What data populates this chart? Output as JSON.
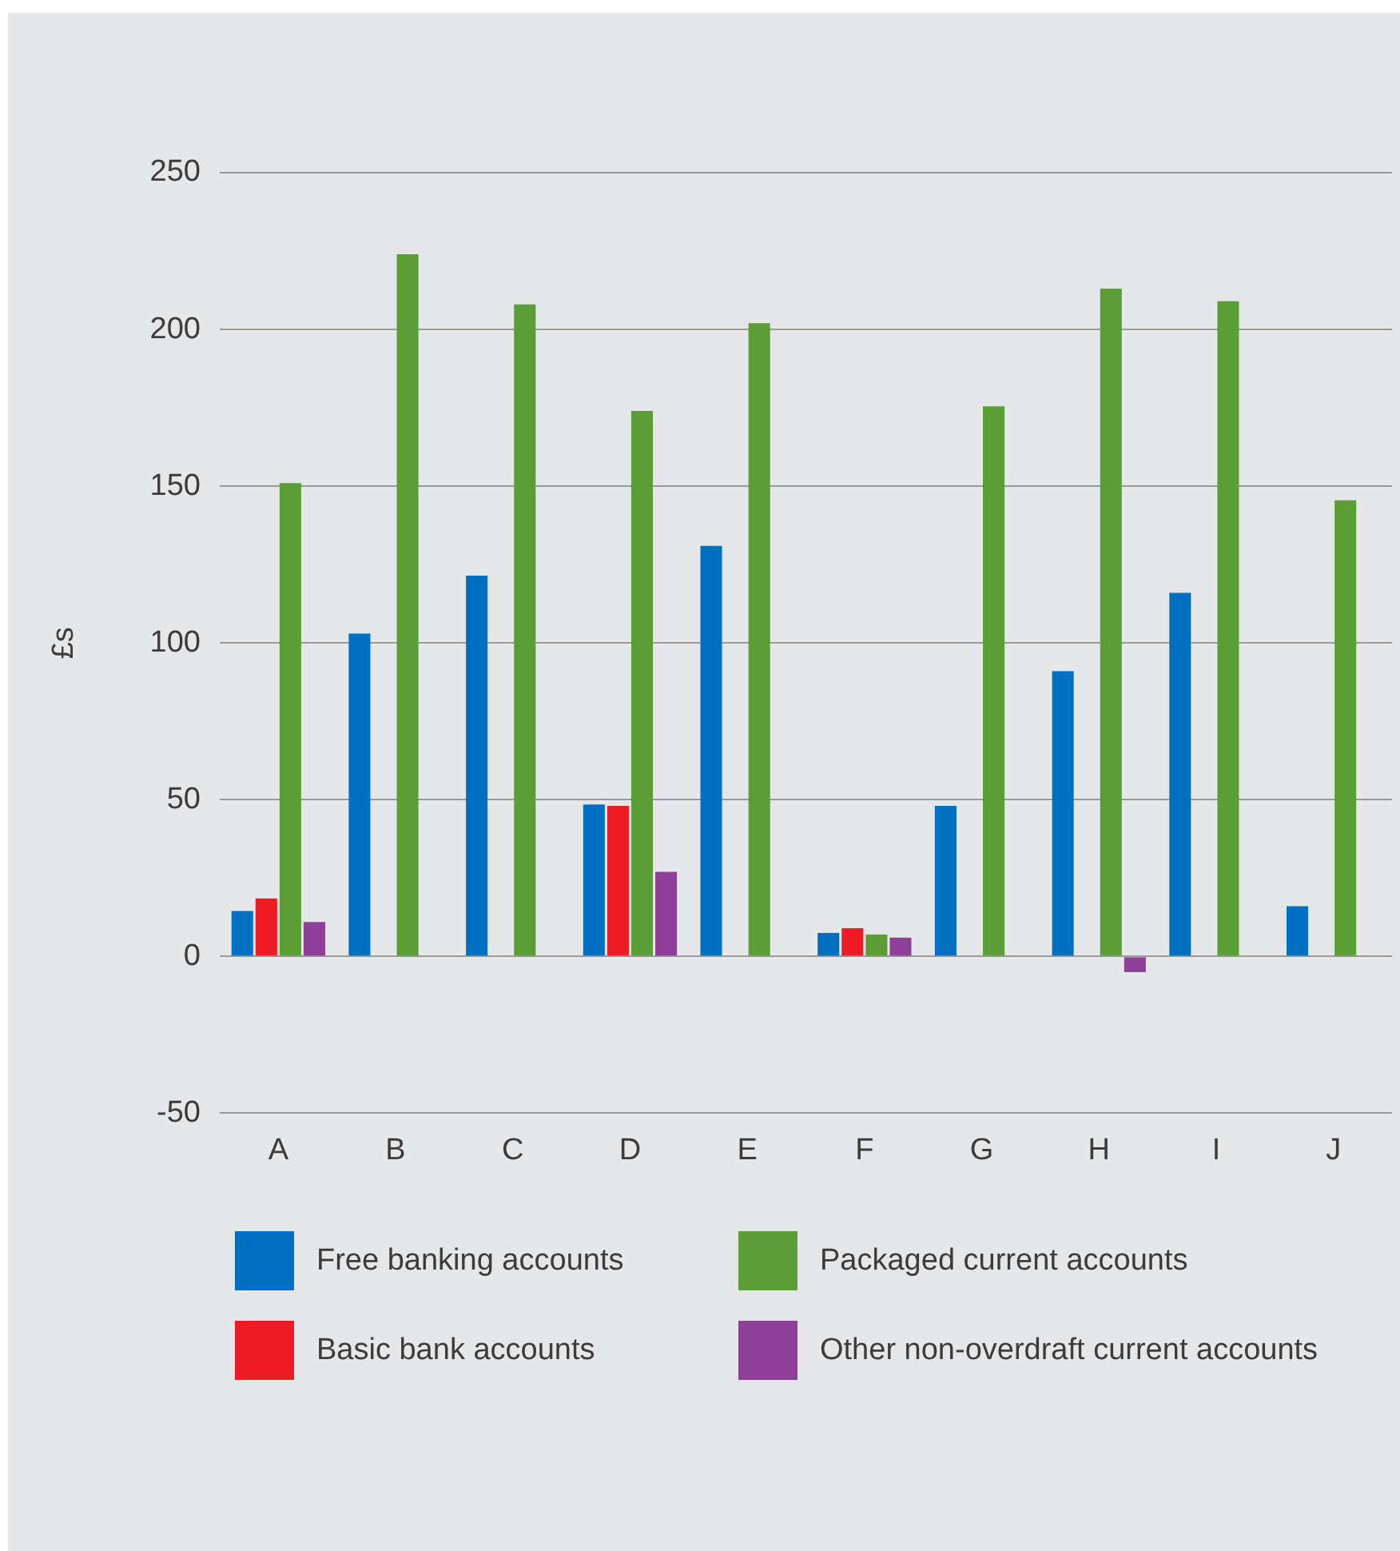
{
  "chart_data": {
    "type": "bar",
    "ylabel": "£s",
    "categories": [
      "A",
      "B",
      "C",
      "D",
      "E",
      "F",
      "G",
      "H",
      "I",
      "J"
    ],
    "series": [
      {
        "name": "Free banking accounts",
        "color": "#0070c0",
        "values": [
          14.5,
          103,
          121.5,
          48.5,
          131,
          7.5,
          48,
          91,
          116,
          16
        ]
      },
      {
        "name": "Basic bank accounts",
        "color": "#ed1c24",
        "values": [
          18.5,
          null,
          null,
          48,
          null,
          9,
          null,
          null,
          null,
          null
        ]
      },
      {
        "name": "Packaged current accounts",
        "color": "#5a9e35",
        "values": [
          151,
          224,
          208,
          174,
          202,
          7,
          175.5,
          213,
          209,
          145.5
        ]
      },
      {
        "name": "Other non-overdraft current accounts",
        "color": "#8e3f98",
        "values": [
          11,
          null,
          null,
          27,
          null,
          6,
          null,
          -5,
          null,
          null
        ]
      }
    ],
    "ylim": [
      -50,
      250
    ],
    "yticks": [
      -50,
      0,
      50,
      100,
      150,
      200,
      250
    ],
    "grid": "y",
    "legend": "bottom"
  }
}
